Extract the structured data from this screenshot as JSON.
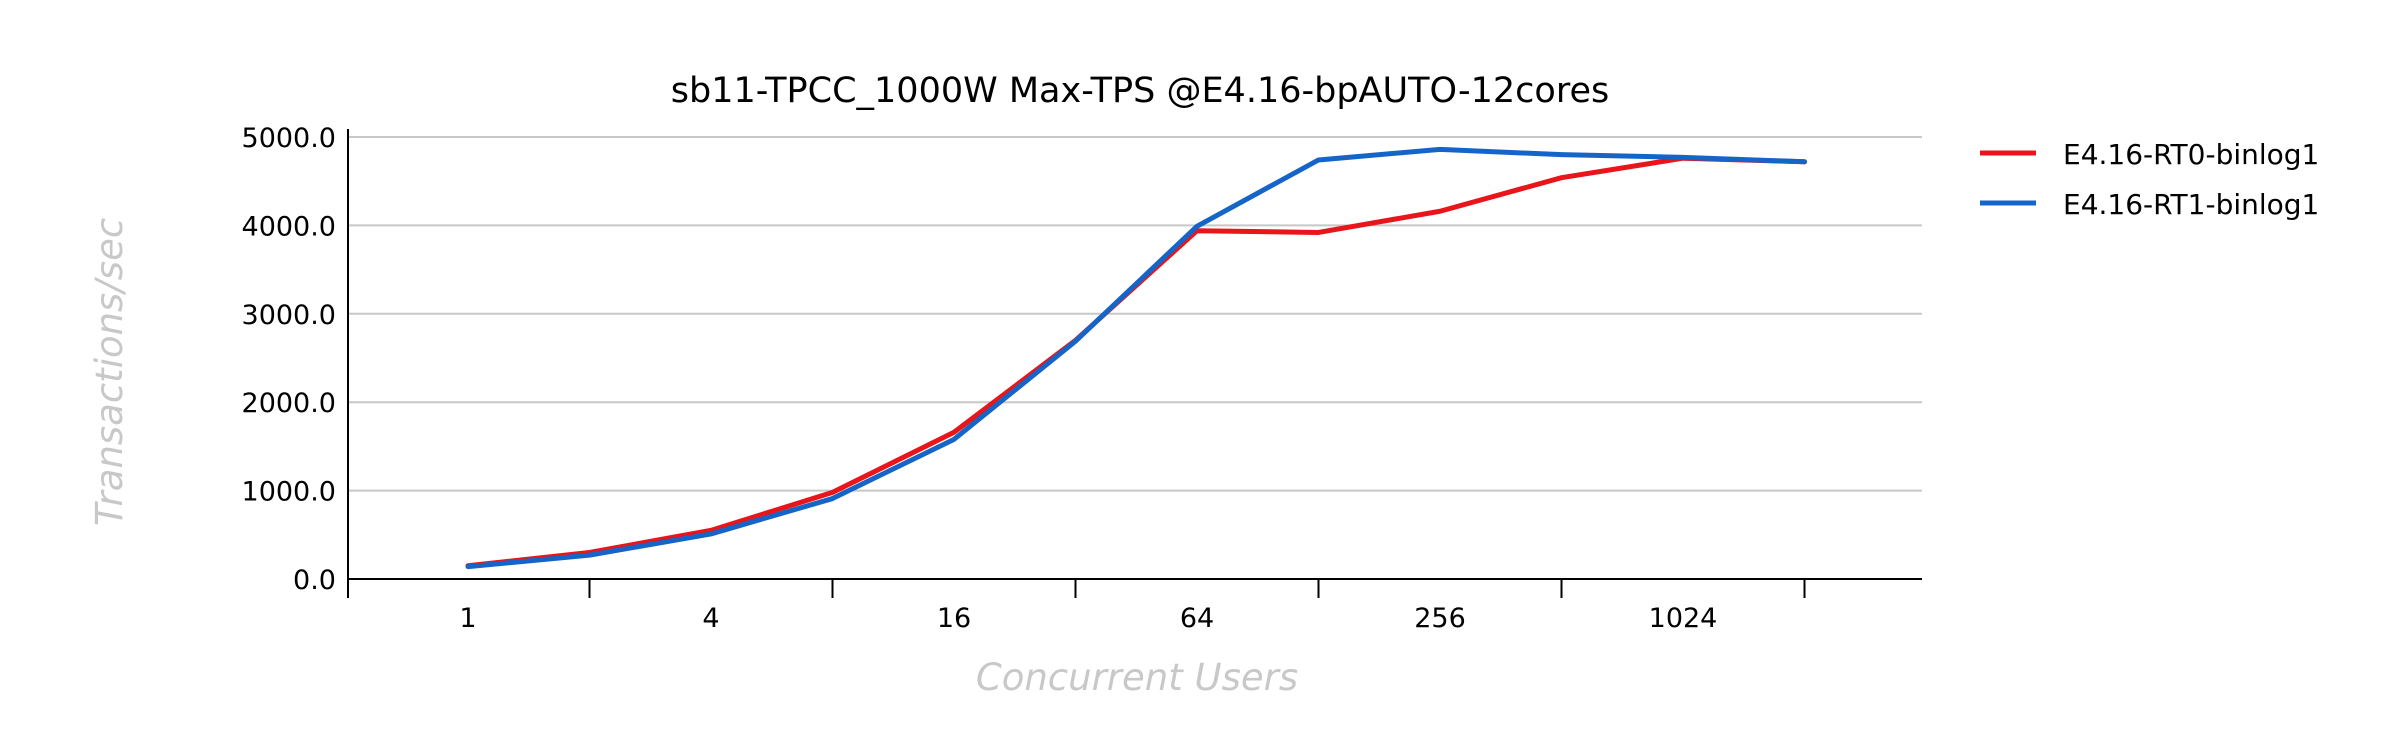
{
  "chart_data": {
    "type": "line",
    "title": "sb11-TPCC_1000W Max-TPS @E4.16-bpAUTO-12cores",
    "xlabel": "Concurrent Users",
    "ylabel": "Transactions/sec",
    "x_scale": "log2",
    "x": [
      1,
      2,
      4,
      8,
      16,
      32,
      64,
      128,
      256,
      512,
      1024,
      2048
    ],
    "x_tick_labels": [
      "1",
      "4",
      "16",
      "64",
      "256",
      "1024"
    ],
    "x_tick_values": [
      1,
      4,
      16,
      64,
      256,
      1024
    ],
    "y_tick_labels": [
      "0.0",
      "1000.0",
      "2000.0",
      "3000.0",
      "4000.0",
      "5000.0"
    ],
    "y_tick_values": [
      0,
      1000,
      2000,
      3000,
      4000,
      5000
    ],
    "ylim": [
      0,
      5000
    ],
    "grid": true,
    "legend_position": "top-right",
    "series": [
      {
        "name": "E4.16-RT0-binlog1",
        "color": "#e8151b",
        "values": [
          150,
          300,
          550,
          980,
          1660,
          2700,
          3940,
          3920,
          4160,
          4540,
          4760,
          4720
        ]
      },
      {
        "name": "E4.16-RT1-binlog1",
        "color": "#1565c8",
        "values": [
          140,
          270,
          510,
          910,
          1580,
          2690,
          3990,
          4740,
          4860,
          4800,
          4770,
          4720
        ]
      }
    ]
  }
}
